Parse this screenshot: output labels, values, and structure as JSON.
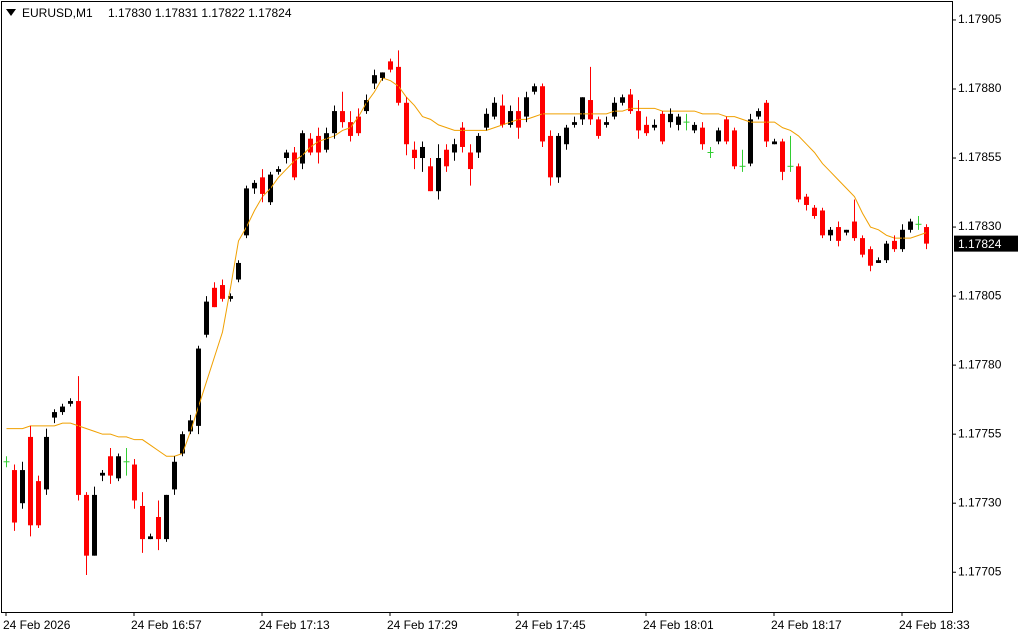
{
  "chart_data": {
    "type": "candlestick",
    "title": "EURUSD,M1",
    "subtitle": "1.17830 1.17831 1.17822 1.17824",
    "categories": [
      "24 Feb 2026",
      null,
      null,
      null,
      null,
      null,
      null,
      null,
      null,
      null,
      null,
      null,
      null,
      null,
      null,
      null,
      "24 Feb 16:57",
      null,
      null,
      null,
      null,
      null,
      null,
      null,
      null,
      null,
      null,
      null,
      null,
      null,
      null,
      null,
      "24 Feb 17:13",
      null,
      null,
      null,
      null,
      null,
      null,
      null,
      null,
      null,
      null,
      null,
      null,
      null,
      null,
      null,
      "24 Feb 17:29",
      null,
      null,
      null,
      null,
      null,
      null,
      null,
      null,
      null,
      null,
      null,
      null,
      null,
      null,
      null,
      "24 Feb 17:45",
      null,
      null,
      null,
      null,
      null,
      null,
      null,
      null,
      null,
      null,
      null,
      null,
      null,
      null,
      null,
      "24 Feb 18:01",
      null,
      null,
      null,
      null,
      null,
      null,
      null,
      null,
      null,
      null,
      null,
      null,
      null,
      null,
      null,
      "24 Feb 18:17",
      null,
      null,
      null,
      null,
      null,
      null,
      null,
      null,
      null,
      null,
      null,
      null,
      null,
      null,
      null,
      "24 Feb 18:33",
      null,
      null,
      null
    ],
    "open": [
      1.17745,
      1.17742,
      1.1773,
      1.17754,
      1.17738,
      1.17735,
      1.17761,
      1.17763,
      1.17766,
      1.17767,
      1.17733,
      1.17711,
      1.1774,
      1.17747,
      1.17739,
      1.17745,
      1.17744,
      1.17729,
      1.17717,
      1.17725,
      1.17717,
      1.17735,
      1.17748,
      1.17756,
      1.17758,
      1.17791,
      1.17808,
      1.17809,
      1.17804,
      1.17811,
      1.17827,
      1.17844,
      1.17848,
      1.17839,
      1.1785,
      1.17855,
      1.17857,
      1.17853,
      1.17862,
      1.17863,
      1.17858,
      1.17864,
      1.17872,
      1.17868,
      1.1787,
      1.17872,
      1.17882,
      1.17884,
      1.1789,
      1.17888,
      1.17875,
      1.17858,
      1.17855,
      1.17852,
      1.17843,
      1.17858,
      1.17857,
      1.17866,
      1.17857,
      1.17857,
      1.17866,
      1.1787,
      1.17874,
      1.17867,
      1.17872,
      1.1787,
      1.17879,
      1.17881,
      1.17863,
      1.17848,
      1.1786,
      1.17867,
      1.17869,
      1.17876,
      1.17869,
      1.17867,
      1.1787,
      1.17875,
      1.17878,
      1.17872,
      1.17867,
      1.17866,
      1.17871,
      1.17868,
      1.17867,
      1.17868,
      1.17865,
      1.17866,
      1.17857,
      1.17861,
      1.17869,
      1.17865,
      1.17852,
      1.17853,
      1.1787,
      1.17875,
      1.1786,
      1.17861,
      1.17852,
      1.17852,
      1.17841,
      1.17837,
      1.17836,
      1.17827,
      1.1783,
      1.17828,
      1.17832,
      1.17826,
      1.17822,
      1.17817,
      1.17818,
      1.17825,
      1.17822,
      1.17829,
      1.17831,
      1.1783
    ],
    "high": [
      1.17747,
      1.17744,
      1.17745,
      1.17758,
      1.1774,
      1.17757,
      1.17764,
      1.17766,
      1.17768,
      1.17776,
      1.17734,
      1.17736,
      1.17742,
      1.1775,
      1.17748,
      1.1775,
      1.17746,
      1.17734,
      1.17719,
      1.17731,
      1.17733,
      1.17747,
      1.17756,
      1.17762,
      1.17787,
      1.17805,
      1.1781,
      1.17811,
      1.17806,
      1.17818,
      1.17845,
      1.17847,
      1.17851,
      1.1785,
      1.17852,
      1.17858,
      1.17859,
      1.17865,
      1.17864,
      1.17866,
      1.17866,
      1.17874,
      1.17879,
      1.17872,
      1.17873,
      1.17878,
      1.17887,
      1.17886,
      1.17891,
      1.17894,
      1.17877,
      1.17861,
      1.17861,
      1.17855,
      1.1786,
      1.1786,
      1.17862,
      1.17868,
      1.1786,
      1.17864,
      1.17873,
      1.17877,
      1.17878,
      1.17874,
      1.17877,
      1.17879,
      1.17882,
      1.17882,
      1.17865,
      1.17864,
      1.17867,
      1.1787,
      1.17877,
      1.17888,
      1.1787,
      1.1787,
      1.17877,
      1.17878,
      1.1788,
      1.17876,
      1.1787,
      1.17869,
      1.17872,
      1.17873,
      1.17871,
      1.17871,
      1.17868,
      1.17868,
      1.17859,
      1.17866,
      1.1787,
      1.17866,
      1.17858,
      1.17871,
      1.17873,
      1.17876,
      1.17862,
      1.17862,
      1.17863,
      1.17853,
      1.17842,
      1.17838,
      1.17837,
      1.1783,
      1.17832,
      1.17829,
      1.1784,
      1.17827,
      1.17823,
      1.17819,
      1.17825,
      1.17827,
      1.17831,
      1.17833,
      1.17834,
      1.17831
    ],
    "low": [
      1.17743,
      1.1772,
      1.17728,
      1.17718,
      1.17721,
      1.17733,
      1.17759,
      1.17762,
      1.17765,
      1.17731,
      1.17704,
      1.17711,
      1.17738,
      1.17737,
      1.17738,
      1.1774,
      1.17728,
      1.17712,
      1.17717,
      1.17713,
      1.17716,
      1.17733,
      1.17747,
      1.17755,
      1.17755,
      1.1779,
      1.17801,
      1.17803,
      1.17803,
      1.1781,
      1.17826,
      1.17842,
      1.17839,
      1.17838,
      1.17849,
      1.17853,
      1.17847,
      1.17851,
      1.17856,
      1.17853,
      1.17857,
      1.17862,
      1.17866,
      1.17861,
      1.17863,
      1.17871,
      1.1788,
      1.17883,
      1.17886,
      1.17874,
      1.17856,
      1.17851,
      1.1785,
      1.17843,
      1.1784,
      1.1785,
      1.17854,
      1.17857,
      1.17845,
      1.17855,
      1.17865,
      1.17869,
      1.17866,
      1.17866,
      1.17862,
      1.17868,
      1.17878,
      1.17859,
      1.17845,
      1.17846,
      1.17858,
      1.17866,
      1.17867,
      1.17867,
      1.17862,
      1.17866,
      1.17869,
      1.17874,
      1.17871,
      1.17862,
      1.17863,
      1.17865,
      1.1786,
      1.17866,
      1.17865,
      1.17865,
      1.17864,
      1.17858,
      1.17855,
      1.1786,
      1.1786,
      1.17851,
      1.1785,
      1.17852,
      1.17869,
      1.17859,
      1.1786,
      1.17847,
      1.1785,
      1.17839,
      1.17836,
      1.17833,
      1.17826,
      1.17825,
      1.17823,
      1.17827,
      1.17825,
      1.17819,
      1.17814,
      1.17817,
      1.17817,
      1.17821,
      1.17821,
      1.17828,
      1.17829,
      1.17822
    ],
    "close": [
      1.17745,
      1.17723,
      1.17742,
      1.17722,
      1.17722,
      1.17754,
      1.17763,
      1.17765,
      1.17767,
      1.17733,
      1.17711,
      1.17733,
      1.17741,
      1.1774,
      1.17747,
      1.17745,
      1.17731,
      1.17717,
      1.17718,
      1.17717,
      1.17733,
      1.17745,
      1.17755,
      1.1776,
      1.17786,
      1.17803,
      1.17801,
      1.17804,
      1.17805,
      1.17817,
      1.17844,
      1.17846,
      1.17842,
      1.17849,
      1.17851,
      1.17857,
      1.17848,
      1.17864,
      1.17857,
      1.17857,
      1.17864,
      1.17872,
      1.17868,
      1.17863,
      1.17864,
      1.17876,
      1.17885,
      1.17886,
      1.17887,
      1.17875,
      1.1786,
      1.17855,
      1.17859,
      1.17843,
      1.17855,
      1.17852,
      1.1786,
      1.17859,
      1.17851,
      1.17863,
      1.17871,
      1.17875,
      1.17867,
      1.17872,
      1.17866,
      1.17877,
      1.17881,
      1.17861,
      1.17848,
      1.17863,
      1.17866,
      1.17868,
      1.17877,
      1.17869,
      1.17863,
      1.17868,
      1.17875,
      1.17877,
      1.17872,
      1.17865,
      1.17864,
      1.17867,
      1.17861,
      1.17871,
      1.1787,
      1.17868,
      1.17867,
      1.1786,
      1.17857,
      1.17865,
      1.17861,
      1.17852,
      1.17852,
      1.17869,
      1.17872,
      1.17861,
      1.17861,
      1.1785,
      1.17852,
      1.1784,
      1.17838,
      1.17834,
      1.17827,
      1.17829,
      1.17825,
      1.17829,
      1.17826,
      1.1782,
      1.17816,
      1.17818,
      1.17824,
      1.17822,
      1.17829,
      1.17832,
      1.17831,
      1.17824
    ],
    "ma": {
      "color": "#f0a000",
      "values": [
        1.17757,
        1.17757,
        1.17757,
        1.17758,
        1.17758,
        1.17758,
        1.17758,
        1.17759,
        1.17759,
        1.17758,
        1.17757,
        1.17756,
        1.17755,
        1.17755,
        1.17754,
        1.17754,
        1.17753,
        1.17753,
        1.17751,
        1.17749,
        1.17747,
        1.17747,
        1.17748,
        1.17756,
        1.17765,
        1.17774,
        1.17783,
        1.17792,
        1.17808,
        1.17825,
        1.1783,
        1.17836,
        1.17841,
        1.17844,
        1.17848,
        1.17851,
        1.17854,
        1.17856,
        1.17859,
        1.17861,
        1.17862,
        1.17863,
        1.17865,
        1.17866,
        1.1787,
        1.17875,
        1.17879,
        1.17884,
        1.17883,
        1.17881,
        1.17877,
        1.17874,
        1.1787,
        1.17869,
        1.17867,
        1.17866,
        1.17865,
        1.17865,
        1.17865,
        1.17865,
        1.17865,
        1.17866,
        1.17867,
        1.17868,
        1.17869,
        1.17869,
        1.1787,
        1.17871,
        1.17871,
        1.17871,
        1.17871,
        1.17871,
        1.17871,
        1.17871,
        1.17871,
        1.17871,
        1.17872,
        1.17872,
        1.17873,
        1.17873,
        1.17873,
        1.17873,
        1.17872,
        1.17872,
        1.17872,
        1.17872,
        1.17872,
        1.17871,
        1.17871,
        1.17871,
        1.1787,
        1.1787,
        1.17869,
        1.17868,
        1.17868,
        1.17868,
        1.17868,
        1.17866,
        1.17865,
        1.17863,
        1.1786,
        1.17857,
        1.17853,
        1.1785,
        1.17847,
        1.17844,
        1.17841,
        1.17835,
        1.1783,
        1.17829,
        1.17827,
        1.17826,
        1.17826,
        1.17826,
        1.17827,
        1.17828
      ]
    },
    "colors": {
      "up": "#000000",
      "down": "#ff0000",
      "doji": "#32cd32"
    },
    "last_price": 1.17824,
    "ylim": [
      1.176906,
      1.179115
    ],
    "yticks": [
      1.17705,
      {
        "value": 1.1773,
        "label": "1.17730"
      },
      1.17755,
      {
        "value": 1.1778,
        "label": "1.17780"
      },
      1.17805,
      {
        "value": 1.1783,
        "label": "1.17830"
      },
      1.17855,
      {
        "value": 1.1788,
        "label": "1.17880"
      },
      1.17905
    ]
  }
}
